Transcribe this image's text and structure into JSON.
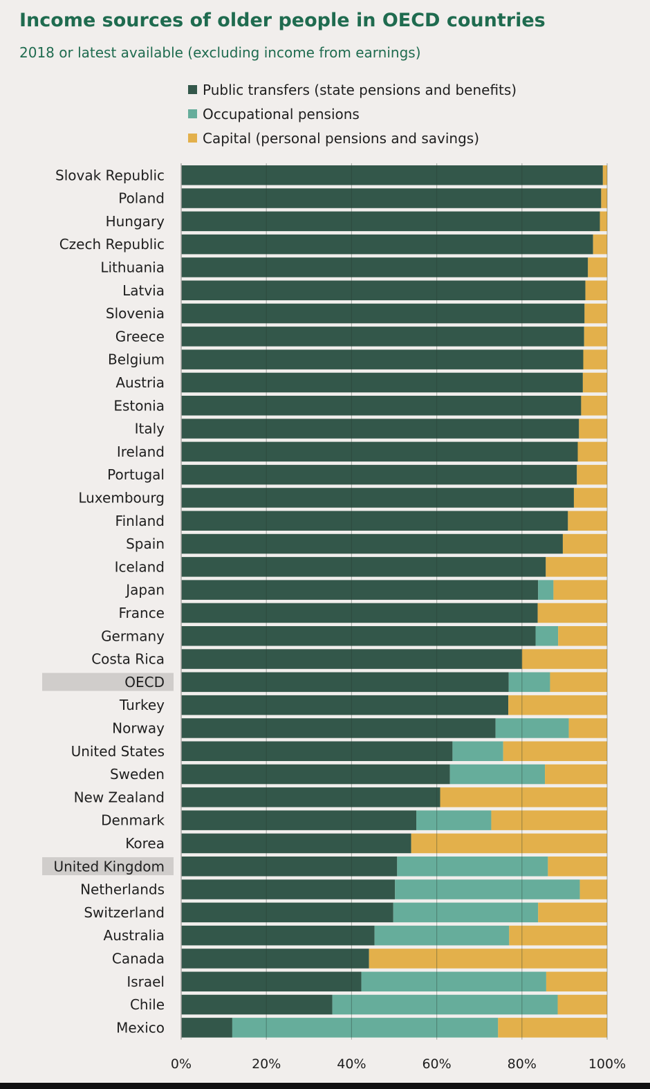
{
  "chart_data": {
    "type": "bar",
    "orientation": "horizontal",
    "stacked": true,
    "title": "Income sources of older people in OECD countries",
    "subtitle": "2018 or latest available (excluding income from earnings)",
    "xlim": [
      0,
      100
    ],
    "xticks": [
      0,
      20,
      40,
      60,
      80,
      100
    ],
    "xtick_labels": [
      "0%",
      "20%",
      "40%",
      "60%",
      "80%",
      "100%"
    ],
    "grid": true,
    "legend_position": "top",
    "highlighted": [
      "OECD",
      "United Kingdom"
    ],
    "categories": [
      "Slovak Republic",
      "Poland",
      "Hungary",
      "Czech Republic",
      "Lithuania",
      "Latvia",
      "Slovenia",
      "Greece",
      "Belgium",
      "Austria",
      "Estonia",
      "Italy",
      "Ireland",
      "Portugal",
      "Luxembourg",
      "Finland",
      "Spain",
      "Iceland",
      "Japan",
      "France",
      "Germany",
      "Costa Rica",
      "OECD",
      "Turkey",
      "Norway",
      "United States",
      "Sweden",
      "New Zealand",
      "Denmark",
      "Korea",
      "United Kingdom",
      "Netherlands",
      "Switzerland",
      "Australia",
      "Canada",
      "Israel",
      "Chile",
      "Mexico"
    ],
    "series": [
      {
        "name": "Public transfers (state pensions and benefits)",
        "color": "#33574a",
        "values": [
          99,
          98.6,
          98.3,
          96.7,
          95.5,
          94.9,
          94.7,
          94.6,
          94.4,
          94.3,
          93.9,
          93.4,
          93.1,
          92.9,
          92.2,
          90.8,
          89.6,
          85.6,
          83.8,
          83.7,
          83.2,
          80,
          76.9,
          76.8,
          73.8,
          63.7,
          63.1,
          60.8,
          55.2,
          54,
          50.7,
          50.2,
          49.8,
          45.4,
          44.1,
          42.3,
          35.5,
          12
        ]
      },
      {
        "name": "Occupational pensions",
        "color": "#66ad9b",
        "values": [
          0,
          0,
          0,
          0,
          0,
          0,
          0,
          0,
          0,
          0,
          0,
          0,
          0,
          0,
          0,
          0,
          0,
          0,
          3.6,
          0,
          5.3,
          0,
          9.7,
          0,
          17.2,
          11.9,
          22.3,
          0,
          17.6,
          0,
          35.4,
          43.4,
          34,
          31.6,
          0,
          43.4,
          52.9,
          62.4
        ]
      },
      {
        "name": "Capital (personal pensions and savings)",
        "color": "#e3b04b",
        "values": [
          1,
          1.4,
          1.7,
          3.3,
          4.5,
          5.1,
          5.3,
          5.4,
          5.6,
          5.7,
          6.1,
          6.6,
          6.9,
          7.1,
          7.8,
          9.2,
          10.4,
          14.4,
          12.6,
          16.3,
          11.5,
          20,
          13.4,
          23.2,
          9,
          24.4,
          14.6,
          39.2,
          27.2,
          46,
          13.9,
          6.4,
          16.2,
          23,
          55.9,
          14.3,
          11.6,
          25.6
        ]
      }
    ]
  }
}
